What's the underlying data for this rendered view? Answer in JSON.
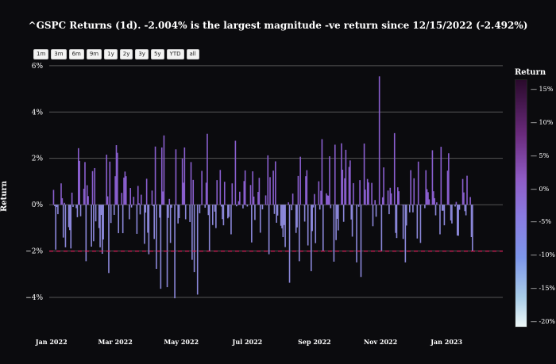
{
  "title": "^GSPC Returns (1d). -2.004% is the largest magnitude -ve return since 12/15/2022 (-2.492%)",
  "range_buttons": [
    "1m",
    "3m",
    "6m",
    "9m",
    "1y",
    "2y",
    "3y",
    "5y",
    "YTD",
    "all"
  ],
  "colors": {
    "background": "#0b0b0e",
    "grid": "#555555",
    "bars_positive": "#8a5fcf",
    "bars_negative": "#8b87d9",
    "reference_line": "#e0245e"
  },
  "colorbar": {
    "title": "Return",
    "ticks": [
      "15%",
      "10%",
      "5%",
      "0%",
      "-5%",
      "-10%",
      "-15%",
      "-20%"
    ]
  },
  "chart_data": {
    "type": "bar",
    "title": "^GSPC Returns (1d). -2.004% is the largest magnitude -ve return since 12/15/2022 (-2.492%)",
    "ylabel": "Return",
    "xlabel": "",
    "ylim": [
      -5.2,
      6.2
    ],
    "x_range": [
      "2021-12-30",
      "2023-02-22"
    ],
    "x_ticks": [
      "Jan 2022",
      "Mar 2022",
      "May 2022",
      "Jul 2022",
      "Sep 2022",
      "Nov 2022",
      "Jan 2023"
    ],
    "x_tick_dates": [
      "2022-01-01",
      "2022-03-01",
      "2022-05-01",
      "2022-07-01",
      "2022-09-01",
      "2022-11-01",
      "2023-01-01"
    ],
    "y_ticks": [
      -4,
      -2,
      0,
      2,
      4,
      6
    ],
    "y_tick_labels": [
      "−4%",
      "−2%",
      "0%",
      "2%",
      "4%",
      "6%"
    ],
    "reference_line": -2.004,
    "grid": true,
    "legend": "colorbar right",
    "start_date": "2022-01-03",
    "values": [
      0.64,
      -0.06,
      -1.94,
      -0.1,
      -0.41,
      0.92,
      0.28,
      -1.42,
      0.08,
      -1.84,
      -0.97,
      -1.1,
      -1.89,
      0.52,
      -0.1,
      -0.15,
      -0.54,
      2.44,
      1.89,
      -0.5,
      0.69,
      1.84,
      -2.44,
      0.84,
      0.37,
      -1.81,
      1.45,
      -1.58,
      1.58,
      -0.72,
      -1.01,
      -1.84,
      -0.44,
      -2.12,
      -1.5,
      2.16,
      0.36,
      -2.95,
      1.86,
      -0.79,
      -0.44,
      1.23,
      2.57,
      2.24,
      -1.23,
      0.51,
      -1.23,
      1.17,
      1.43,
      1.23,
      -0.63,
      0.72,
      -0.12,
      0.0,
      0.34,
      -1.26,
      0.81,
      0.06,
      -0.42,
      0.43,
      -1.69,
      -0.34,
      1.12,
      -1.21,
      -2.14,
      0.61,
      -0.06,
      -1.48,
      2.51,
      -2.77,
      -0.56,
      -3.63,
      2.47,
      0.57,
      2.99,
      -3.56,
      -0.57,
      0.25,
      -1.65,
      -0.13,
      -4.04,
      2.39,
      -0.02,
      -0.81,
      -0.58,
      1.99,
      0.95,
      2.47,
      -0.63,
      0.01,
      -0.75,
      1.84,
      -2.38,
      1.07,
      -2.91,
      -3.88,
      0.0,
      -0.37,
      0.0,
      1.46,
      -0.13,
      0.95,
      3.06,
      -0.45,
      -2.01,
      -0.88,
      0.0,
      -0.3,
      -1.01,
      1.06,
      1.5,
      -0.08,
      -0.62,
      -0.89,
      0.99,
      -0.59,
      -0.53,
      0.0,
      -1.28,
      0.92,
      2.76,
      -0.07,
      0.0,
      0.15,
      0.56,
      -0.16,
      1.02,
      1.48,
      0.0,
      -0.08,
      0.85,
      -1.63,
      1.44,
      0.35,
      -0.66,
      0.55,
      1.16,
      -1.21,
      0.0,
      -0.2,
      0.4,
      0.0,
      2.13,
      -2.14,
      1.19,
      1.47,
      -0.4,
      1.87,
      -0.78,
      -0.47,
      -0.91,
      -1.02,
      -1.4,
      -0.88,
      -1.83,
      0.1,
      -3.37,
      0.0,
      -0.24,
      0.48,
      -1.22,
      -0.98,
      1.24,
      -2.44,
      2.07,
      0.0,
      -0.73,
      1.23,
      1.49,
      -1.76,
      -2.87,
      -1.14,
      -0.12,
      0.46,
      -1.66,
      1.01,
      -0.21,
      0.6,
      2.83,
      -2.01,
      0.49,
      0.4,
      0.39,
      2.09,
      -0.15,
      -2.46,
      2.59,
      -1.53,
      -0.61,
      -1.11,
      2.65,
      1.51,
      -0.74,
      1.14,
      2.37,
      1.63,
      1.91,
      -0.64,
      -1.38,
      0.93,
      -2.49,
      0.0,
      -0.09,
      1.06,
      -3.12,
      2.64,
      0.65,
      0.0,
      1.11,
      0.96,
      0.94,
      -0.93,
      0.0,
      0.2,
      -0.52,
      5.54,
      0.0,
      -1.98,
      0.32,
      1.61,
      0.0,
      0.61,
      -0.41,
      0.73,
      0.49,
      3.09,
      -1.22,
      -1.44,
      0.75,
      0.58,
      0.0,
      -1.48,
      0.0,
      -2.49,
      -0.9,
      -0.33,
      1.49,
      0.0,
      -0.33,
      1.14,
      -1.46,
      1.86,
      0.0,
      -1.65,
      0.01,
      -0.15,
      1.49,
      0.67,
      0.54,
      0.23,
      2.35,
      0.58,
      0.28,
      -0.46,
      0.1,
      -1.28,
      2.5,
      -0.26,
      -0.26,
      -0.89,
      1.47,
      2.22,
      0.0,
      -0.68,
      -0.81,
      -0.08,
      0.12,
      -1.33,
      -1.34,
      -0.22,
      1.11,
      0.53,
      -0.28,
      -0.46,
      1.25,
      0.33,
      -1.4,
      -2.0
    ]
  }
}
